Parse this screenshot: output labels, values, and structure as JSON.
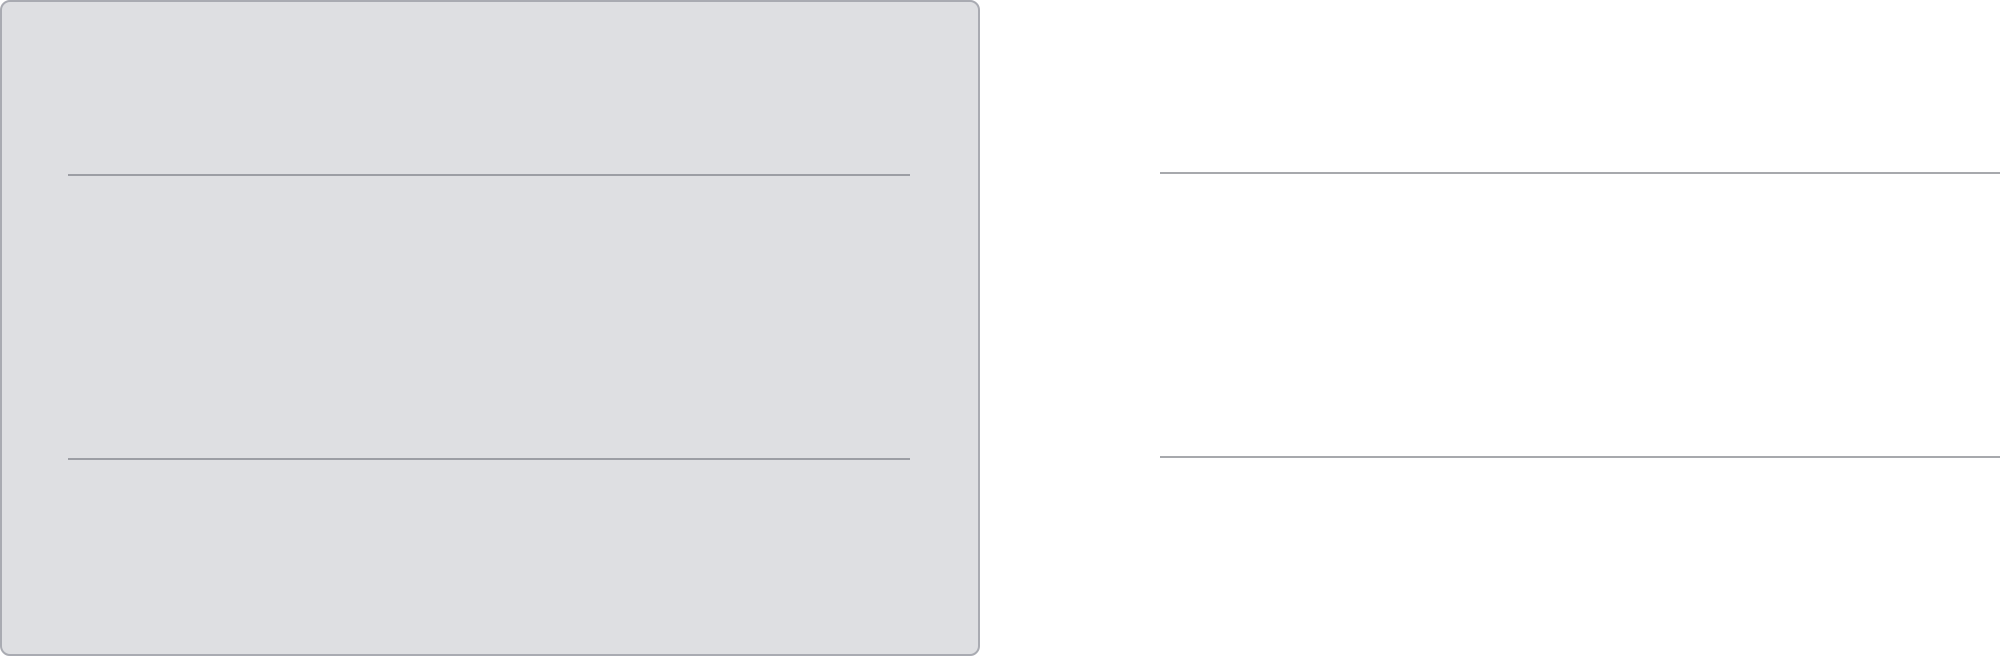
{
  "colors": {
    "background": "#ffffff",
    "card_background": "#dedfe2",
    "card_border": "#a9abb2",
    "divider": "#9c9ea4",
    "right_divider": "#a7a9ad"
  }
}
